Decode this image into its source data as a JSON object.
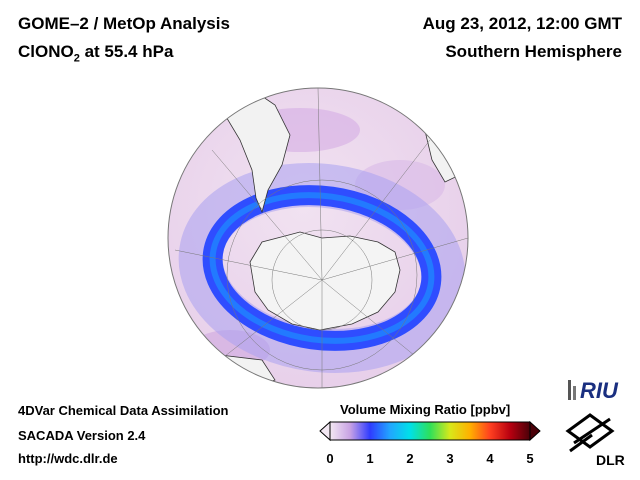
{
  "header": {
    "title_line1": "GOME–2 / MetOp Analysis",
    "title_line2_prefix": "ClONO",
    "title_line2_sub": "2",
    "title_line2_suffix": " at 55.4 hPa",
    "date": "Aug 23, 2012, 12:00 GMT",
    "region": "Southern Hemisphere"
  },
  "footer": {
    "line1": "4DVar Chemical Data Assimilation",
    "line2": "SACADA Version 2.4",
    "line3": "http://wdc.dlr.de"
  },
  "colorbar": {
    "title": "Volume Mixing Ratio [ppbv]",
    "ticks": [
      "0",
      "1",
      "2",
      "3",
      "4",
      "5"
    ],
    "range": [
      0,
      5
    ],
    "colors": [
      "#f3e8f3",
      "#c9a3e4",
      "#2f3cff",
      "#21a6ff",
      "#00e0e8",
      "#2ee05a",
      "#d8e81a",
      "#ffb000",
      "#ff4020",
      "#b80010",
      "#4a0008"
    ]
  },
  "logos": {
    "riu": "RIU",
    "dlr": "DLR"
  },
  "map": {
    "projection": "orthographic-south-polar",
    "land_color": "#f2f2f2",
    "background_field_color": "#efd9ef",
    "vortex_ring_color": "#2f4dff"
  }
}
